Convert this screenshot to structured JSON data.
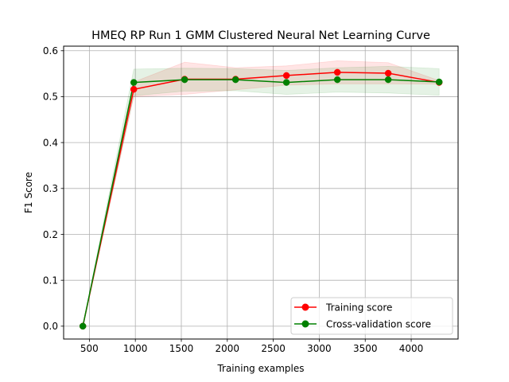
{
  "chart_data": {
    "type": "line",
    "title": "HMEQ RP Run 1 GMM Clustered Neural Net Learning Curve",
    "xlabel": "Training examples",
    "ylabel": "F1 Score",
    "xlim": [
      220,
      4510
    ],
    "ylim": [
      -0.028,
      0.61
    ],
    "xticks": [
      500,
      1000,
      1500,
      2000,
      2500,
      3000,
      3500,
      4000
    ],
    "yticks": [
      0.0,
      0.1,
      0.2,
      0.3,
      0.4,
      0.5,
      0.6
    ],
    "grid": true,
    "legend_position": "lower-right",
    "x": [
      429,
      983,
      1536,
      2090,
      2643,
      3197,
      3750,
      4304
    ],
    "series": [
      {
        "name": "Training score",
        "color": "#ff0000",
        "values": [
          0.0,
          0.516,
          0.538,
          0.538,
          0.546,
          0.553,
          0.551,
          0.531
        ],
        "band_lower": [
          0.0,
          0.5,
          0.505,
          0.515,
          0.525,
          0.528,
          0.528,
          0.527
        ],
        "band_upper": [
          0.0,
          0.532,
          0.575,
          0.563,
          0.567,
          0.578,
          0.574,
          0.535
        ]
      },
      {
        "name": "Cross-validation score",
        "color": "#008000",
        "values": [
          0.0,
          0.531,
          0.537,
          0.537,
          0.531,
          0.537,
          0.537,
          0.532
        ],
        "band_lower": [
          0.0,
          0.502,
          0.512,
          0.513,
          0.505,
          0.51,
          0.508,
          0.503
        ],
        "band_upper": [
          0.0,
          0.56,
          0.562,
          0.561,
          0.557,
          0.563,
          0.566,
          0.561
        ]
      }
    ]
  }
}
